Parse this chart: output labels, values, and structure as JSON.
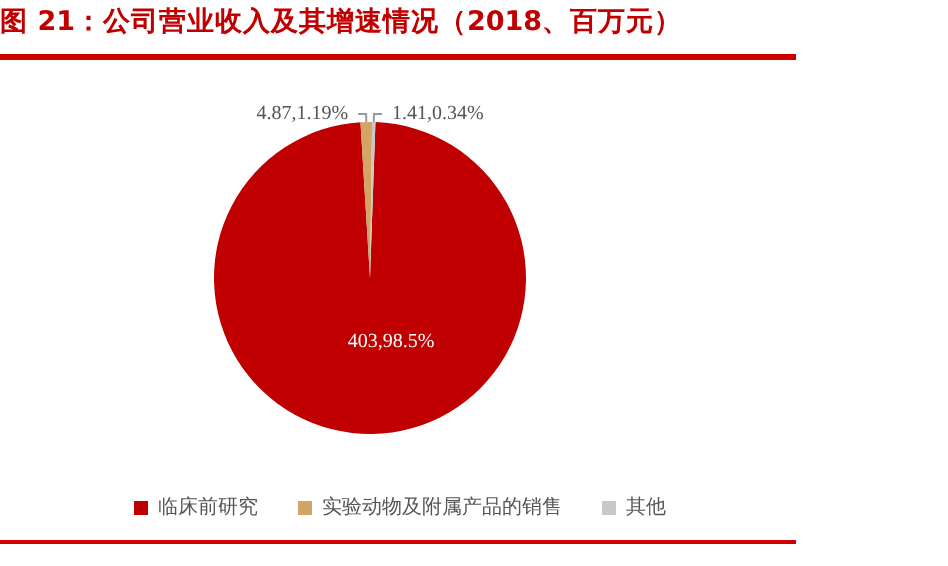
{
  "chart_data": {
    "type": "pie",
    "title": "图 21：公司营业收入及其增速情况（2018、百万元）",
    "categories": [
      "临床前研究",
      "实验动物及附属产品的销售",
      "其他"
    ],
    "values": [
      98.47,
      1.19,
      0.34
    ],
    "value_labels": [
      "403,98.5%",
      "4.87,1.19%",
      "1.41,0.34%"
    ],
    "colors": [
      "#c00000",
      "#d4a464",
      "#c8c8c8"
    ],
    "legend": "bottom"
  }
}
